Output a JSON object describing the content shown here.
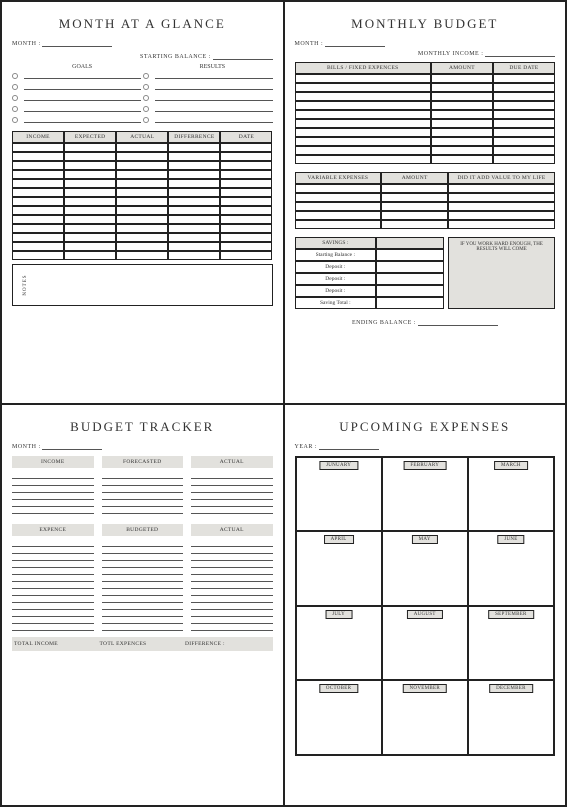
{
  "colors": {
    "header_bg": "#e2e1dd",
    "border": "#222222",
    "text": "#333333",
    "line": "#555555"
  },
  "q1": {
    "title": "MONTH  AT  A  GLANCE",
    "month_label": "MONTH :",
    "starting_balance_label": "STARTING  BALANCE :",
    "goals_label": "GOALS",
    "results_label": "RESULTS",
    "bullet_rows": 5,
    "table_headers": [
      "INCOME",
      "EXPECTED",
      "ACTUAL",
      "DIFFERRENCE",
      "DATE"
    ],
    "table_rows": 13,
    "notes_label": "NOTES"
  },
  "q2": {
    "title": "MONTHLY  BUDGET",
    "month_label": "MONTH :",
    "income_label": "MONTHLY  INCOME :",
    "bills_headers": [
      "BILLS / FIXED EXPENCES",
      "AMOUNT",
      "DUE  DATE"
    ],
    "bills_rows": 10,
    "variable_headers": [
      "VARIABLE EXPENSES",
      "AMOUNT",
      "DID IT ADD VALUE TO MY LIFE"
    ],
    "variable_rows": 5,
    "savings_label": "SAVINGS :",
    "savings_rows": [
      "Starting Balance :",
      "Deposit :",
      "Deposit :",
      "Deposit :",
      "Saving Total :"
    ],
    "quote": "IF YOU WORK HARD ENOUGH, THE RESULTS WILL COME",
    "ending_label": "ENDING  BALANCE :"
  },
  "q3": {
    "title": "BUDGET TRACKER",
    "month_label": "MONTH :",
    "top_headers": [
      "INCOME",
      "FORECASTED",
      "ACTUAL"
    ],
    "top_rows": 6,
    "mid_headers": [
      "EXPENCE",
      "BUDGETED",
      "ACTUAL"
    ],
    "mid_rows": 13,
    "totals": [
      "TOTAL INCOME",
      "TOTL EXPENCES",
      "DIFFERENCE :"
    ]
  },
  "q4": {
    "title": "UPCOMING  EXPENSES",
    "year_label": "YEAR :",
    "months": [
      "JUNUARY",
      "FEBRUARY",
      "MARCH",
      "APRIL",
      "MAY",
      "JUNE",
      "JULY",
      "AUGUST",
      "SEPTEMBER",
      "OCTOBER",
      "NOVEMBER",
      "DECEMBER"
    ]
  }
}
